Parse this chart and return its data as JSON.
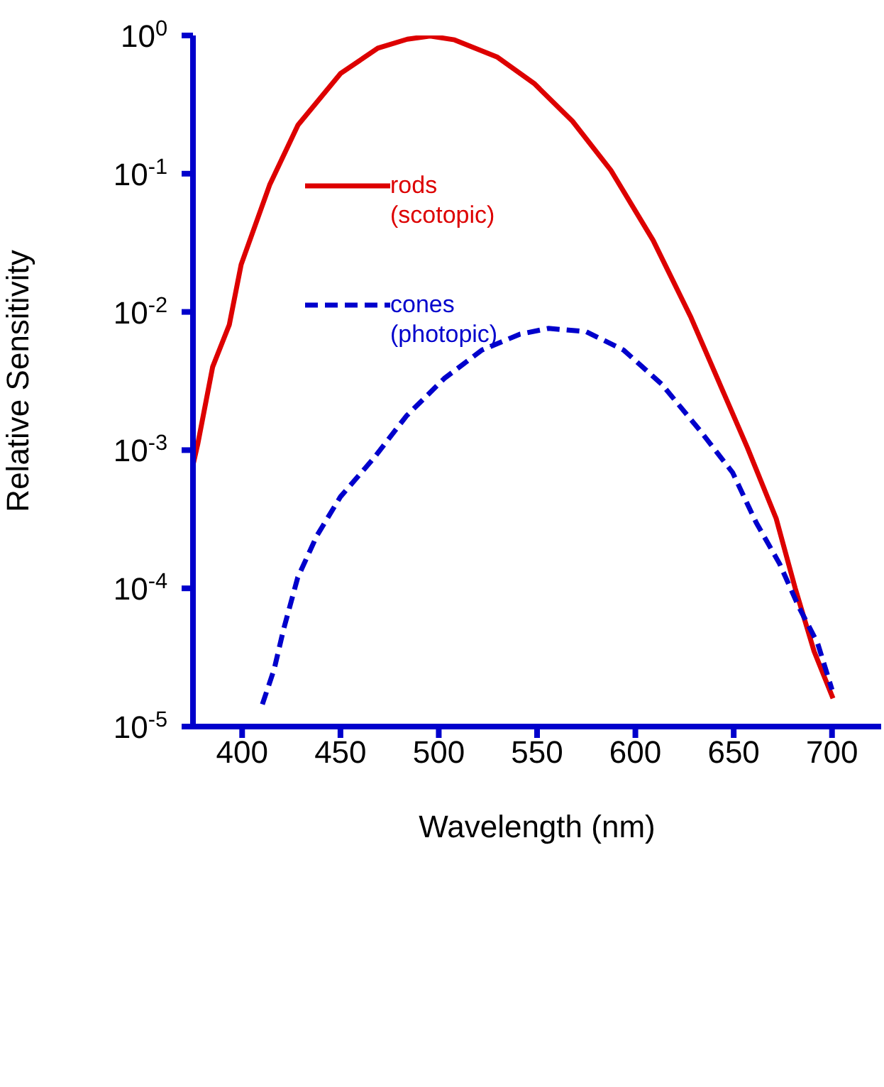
{
  "chart_data": {
    "type": "line",
    "xlabel": "Wavelength (nm)",
    "ylabel": "Relative Sensitivity",
    "log": "y",
    "legend": "top left",
    "xlim": [
      375,
      725
    ],
    "xticks": [
      400,
      450,
      500,
      550,
      600,
      650,
      700
    ],
    "ylim": [
      1e-05,
      1
    ],
    "yticks": [
      {
        "value": 1,
        "label": "10$^{0}$"
      },
      {
        "value": 0.1,
        "label": "10$^{-1}$"
      },
      {
        "value": 0.01,
        "label": "10$^{-2}$"
      },
      {
        "value": 0.001,
        "label": "10$^{-3}$"
      },
      {
        "value": 0.0001,
        "label": "10$^{-4}$"
      },
      {
        "value": 1e-05,
        "label": "10$^{-5}$"
      }
    ],
    "grid": false,
    "marker": "none",
    "series": [
      {
        "name": "rods (scotopic)",
        "color": "#dd0000",
        "line_style": "solid",
        "x": [
          375,
          377.4,
          385,
          393.5,
          399.5,
          414,
          428.4,
          450,
          469,
          484,
          495.6,
          508,
          529.6,
          548.5,
          568,
          587.5,
          609,
          628.3,
          657,
          671.6,
          681.3,
          690.9,
          700.5
        ],
        "values": [
          0.00078,
          0.0011,
          0.004,
          0.0081,
          0.022,
          0.083,
          0.225,
          0.53,
          0.81,
          0.94,
          0.99,
          0.93,
          0.7,
          0.45,
          0.24,
          0.106,
          0.033,
          0.0091,
          0.00104,
          0.00032,
          0.0001,
          3.5e-05,
          1.6e-05
        ]
      },
      {
        "name": "cones (photopic)",
        "color": "#0000cc",
        "line_style": "dashed",
        "x": [
          410.3,
          416.3,
          421,
          428.3,
          438,
          450,
          466.8,
          483.6,
          502.8,
          522,
          541.3,
          555.7,
          574.9,
          594,
          613.4,
          632.6,
          649.4,
          661.4,
          673.4,
          683,
          692.7,
          700
        ],
        "values": [
          1.45e-05,
          2.6e-05,
          5e-05,
          0.00012,
          0.00024,
          0.00046,
          0.00087,
          0.00177,
          0.0033,
          0.0053,
          0.0069,
          0.0076,
          0.0072,
          0.0053,
          0.003,
          0.0014,
          0.00069,
          0.0003,
          0.00015,
          7.4e-05,
          4e-05,
          1.85e-05
        ]
      }
    ]
  }
}
